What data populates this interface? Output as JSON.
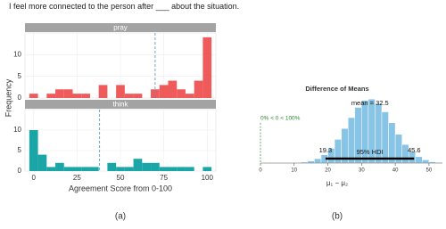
{
  "chart_data": [
    {
      "type": "facet-histogram",
      "title": "I feel more connected to the person after ___ about the situation.",
      "y_label": "Frequency",
      "x_label": "Agreement Score from 0-100",
      "caption": "(a)",
      "bins": [
        -2.5,
        2.5,
        7.5,
        12.5,
        17.5,
        22.5,
        27.5,
        32.5,
        37.5,
        42.5,
        47.5,
        52.5,
        57.5,
        62.5,
        67.5,
        72.5,
        77.5,
        82.5,
        87.5,
        92.5,
        97.5,
        102.5
      ],
      "xlim": [
        -5,
        105
      ],
      "xticks": [
        0,
        25,
        50,
        75,
        100
      ],
      "ylim": [
        0,
        15
      ],
      "yticks": [
        0,
        5,
        10
      ],
      "grid": true,
      "facets": [
        {
          "name": "pray",
          "color": "#ef5b5b",
          "mean": 70,
          "values": [
            1,
            0,
            1,
            2,
            2,
            1,
            1,
            0,
            3,
            0,
            3,
            1,
            1,
            0,
            2,
            3,
            4,
            2,
            1,
            4,
            14
          ]
        },
        {
          "name": "think",
          "color": "#1aa6a6",
          "mean": 38,
          "values": [
            10,
            4,
            1,
            2,
            1,
            1,
            1,
            1,
            0,
            2,
            1,
            1,
            3,
            2,
            2,
            1,
            1,
            1,
            1,
            0,
            1
          ]
        }
      ]
    },
    {
      "type": "posterior-histogram",
      "title": "Difference of Means",
      "x_label": "μ₁ − μ₂",
      "caption": "(b)",
      "bins": [
        10,
        12,
        14,
        16,
        18,
        20,
        22,
        24,
        26,
        28,
        30,
        32,
        34,
        36,
        38,
        40,
        42,
        44,
        46,
        48,
        50,
        52,
        54
      ],
      "values": [
        0.6,
        1.5,
        3.3,
        6.9,
        13,
        23,
        37,
        54,
        71,
        87,
        98,
        100,
        93,
        80,
        63,
        45,
        29,
        18,
        10,
        5,
        2,
        1
      ],
      "color": "#87c4e6",
      "xlim": [
        0,
        54
      ],
      "xticks": [
        0,
        10,
        20,
        30,
        40,
        50
      ],
      "ylim": [
        0,
        110
      ],
      "mean": {
        "value": 32.5,
        "label": "mean = 32.5"
      },
      "compare": {
        "value": 0,
        "label": "0% < 0 < 100%",
        "color": "#2e8b2e"
      },
      "hdi_label": "95% HDI",
      "hdi": [
        19.3,
        45.6
      ]
    }
  ]
}
